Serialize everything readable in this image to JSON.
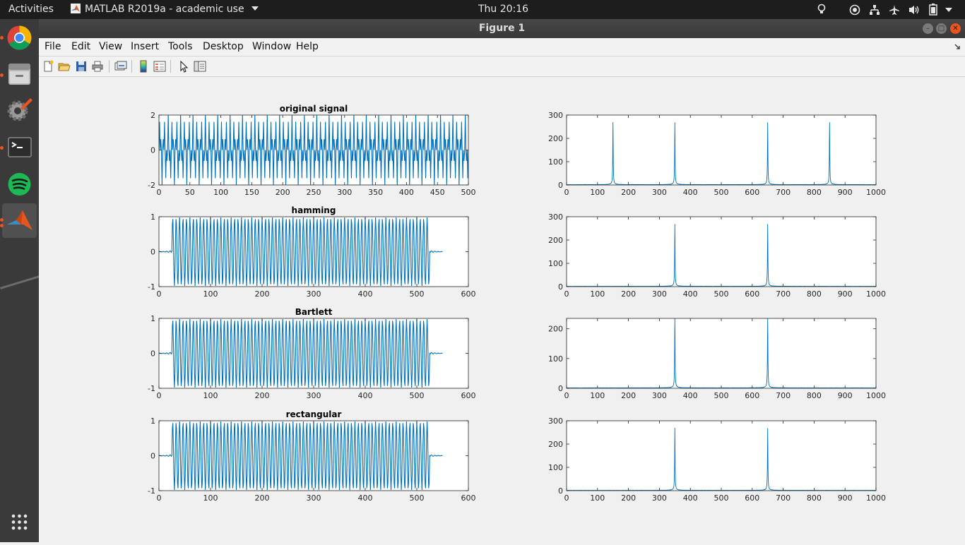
{
  "topbar": {
    "activities": "Activities",
    "app_name": "MATLAB R2019a - academic use",
    "clock": "Thu 20:16"
  },
  "window": {
    "title": "Figure 1"
  },
  "menubar": {
    "items": [
      "File",
      "Edit",
      "View",
      "Insert",
      "Tools",
      "Desktop",
      "Window",
      "Help"
    ]
  },
  "dock": {
    "apps": [
      "chrome-icon",
      "files-icon",
      "settings-icon",
      "terminal-icon",
      "spotify-icon",
      "matlab-icon",
      "show-apps-icon"
    ]
  },
  "toolbar": {
    "tools": [
      "new-figure-icon",
      "open-file-icon",
      "save-icon",
      "print-icon",
      "link-plot-icon",
      "colorbar-icon",
      "legend-icon",
      "edit-plot-arrow-icon",
      "property-inspector-icon"
    ]
  },
  "chart_data": [
    {
      "type": "line",
      "title": "original signal",
      "xlim": [
        0,
        500
      ],
      "ylim": [
        -2,
        2
      ],
      "xticks": [
        0,
        50,
        100,
        150,
        200,
        250,
        300,
        350,
        400,
        450,
        500
      ],
      "yticks": [
        -2,
        0,
        2
      ],
      "signal": {
        "tones_cycles_per_1000_samples": [
          150,
          350
        ],
        "amplitude": 1,
        "length": 501,
        "window": "none"
      },
      "color": "#0072bd"
    },
    {
      "type": "line",
      "xlim": [
        0,
        1000
      ],
      "ylim": [
        0,
        300
      ],
      "xticks": [
        0,
        100,
        200,
        300,
        400,
        500,
        600,
        700,
        800,
        900,
        1000
      ],
      "yticks": [
        0,
        100,
        200,
        300
      ],
      "spectrum": {
        "peaks": [
          [
            150,
            250
          ],
          [
            350,
            250
          ],
          [
            650,
            250
          ],
          [
            850,
            250
          ]
        ]
      },
      "color": "#0072bd"
    },
    {
      "type": "line",
      "title": "hamming",
      "xlim": [
        0,
        600
      ],
      "ylim": [
        -1,
        1
      ],
      "xticks": [
        0,
        100,
        200,
        300,
        400,
        500,
        600
      ],
      "yticks": [
        -1,
        0,
        1
      ],
      "signal": {
        "tone_cycles_per_1000_samples": 150,
        "active_range": [
          25,
          525
        ],
        "total_length": 550,
        "tail_amplitude": 0.03
      },
      "color": "#0072bd"
    },
    {
      "type": "line",
      "xlim": [
        0,
        1000
      ],
      "ylim": [
        0,
        300
      ],
      "xticks": [
        0,
        100,
        200,
        300,
        400,
        500,
        600,
        700,
        800,
        900,
        1000
      ],
      "yticks": [
        0,
        100,
        200,
        300
      ],
      "spectrum": {
        "peaks": [
          [
            350,
            250
          ],
          [
            650,
            250
          ]
        ]
      },
      "color": "#0072bd"
    },
    {
      "type": "line",
      "title": "Bartlett",
      "xlim": [
        0,
        600
      ],
      "ylim": [
        -1,
        1
      ],
      "xticks": [
        0,
        100,
        200,
        300,
        400,
        500,
        600
      ],
      "yticks": [
        -1,
        0,
        1
      ],
      "signal": {
        "tone_cycles_per_1000_samples": 150,
        "active_range": [
          25,
          525
        ],
        "total_length": 550,
        "tail_amplitude": 0.03
      },
      "color": "#0072bd"
    },
    {
      "type": "line",
      "xlim": [
        0,
        1000
      ],
      "ylim": [
        0,
        235
      ],
      "xticks": [
        0,
        100,
        200,
        300,
        400,
        500,
        600,
        700,
        800,
        900,
        1000
      ],
      "yticks": [
        0,
        100,
        200
      ],
      "spectrum": {
        "peaks": [
          [
            350,
            235
          ],
          [
            650,
            235
          ]
        ]
      },
      "color": "#0072bd"
    },
    {
      "type": "line",
      "title": "rectangular",
      "xlim": [
        0,
        600
      ],
      "ylim": [
        -1,
        1
      ],
      "xticks": [
        0,
        100,
        200,
        300,
        400,
        500,
        600
      ],
      "yticks": [
        -1,
        0,
        1
      ],
      "signal": {
        "tone_cycles_per_1000_samples": 150,
        "active_range": [
          25,
          525
        ],
        "total_length": 550,
        "tail_amplitude": 0.03
      },
      "color": "#0072bd"
    },
    {
      "type": "line",
      "xlim": [
        0,
        1000
      ],
      "ylim": [
        0,
        300
      ],
      "xticks": [
        0,
        100,
        200,
        300,
        400,
        500,
        600,
        700,
        800,
        900,
        1000
      ],
      "yticks": [
        0,
        100,
        200,
        300
      ],
      "spectrum": {
        "peaks": [
          [
            350,
            250
          ],
          [
            650,
            250
          ]
        ]
      },
      "color": "#0072bd"
    }
  ]
}
